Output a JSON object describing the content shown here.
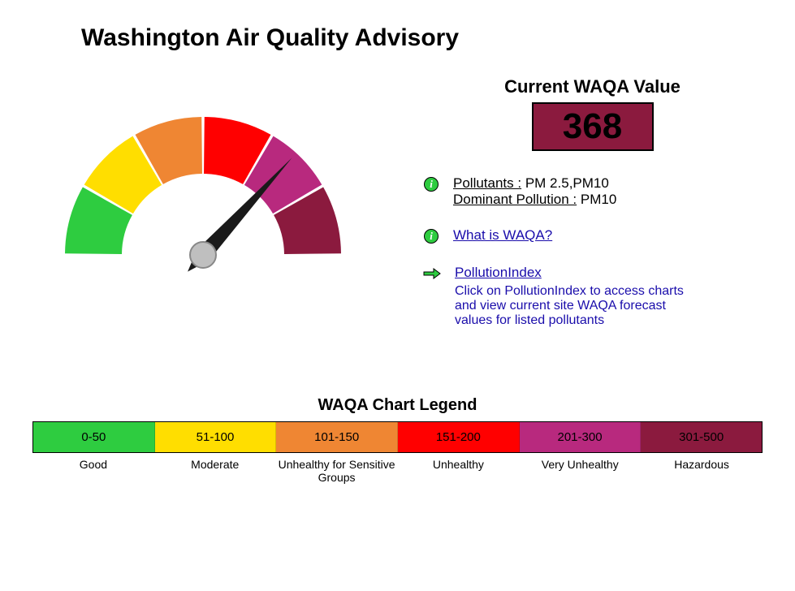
{
  "title": "Washington Air Quality Advisory",
  "gauge": {
    "value": 368,
    "max": 500,
    "segments": [
      {
        "color": "#2ecc40"
      },
      {
        "color": "#ffde00"
      },
      {
        "color": "#ef8633"
      },
      {
        "color": "#ff0000"
      },
      {
        "color": "#b8297e"
      },
      {
        "color": "#8b1a3e"
      }
    ],
    "needle_color": "#1a1a1a",
    "hub_color": "#bfbfbf"
  },
  "current": {
    "label": "Current WAQA Value",
    "value": "368",
    "box_bg": "#8b1a3e"
  },
  "pollutants": {
    "label": "Pollutants :",
    "value": " PM 2.5,PM10",
    "dominant_label": "Dominant Pollution :",
    "dominant_value": " PM10"
  },
  "links": {
    "what_is": "What is WAQA?",
    "pollution_index": "PollutionIndex",
    "hint": "Click on PollutionIndex to access charts and view current site WAQA forecast values for listed pollutants"
  },
  "legend": {
    "title": "WAQA Chart Legend",
    "items": [
      {
        "range": "0-50",
        "label": "Good",
        "color": "#2ecc40"
      },
      {
        "range": "51-100",
        "label": "Moderate",
        "color": "#ffde00"
      },
      {
        "range": "101-150",
        "label": "Unhealthy for Sensitive Groups",
        "color": "#ef8633"
      },
      {
        "range": "151-200",
        "label": "Unhealthy",
        "color": "#ff0000"
      },
      {
        "range": "201-300",
        "label": "Very Unhealthy",
        "color": "#b8297e"
      },
      {
        "range": "301-500",
        "label": "Hazardous",
        "color": "#8b1a3e"
      }
    ]
  }
}
